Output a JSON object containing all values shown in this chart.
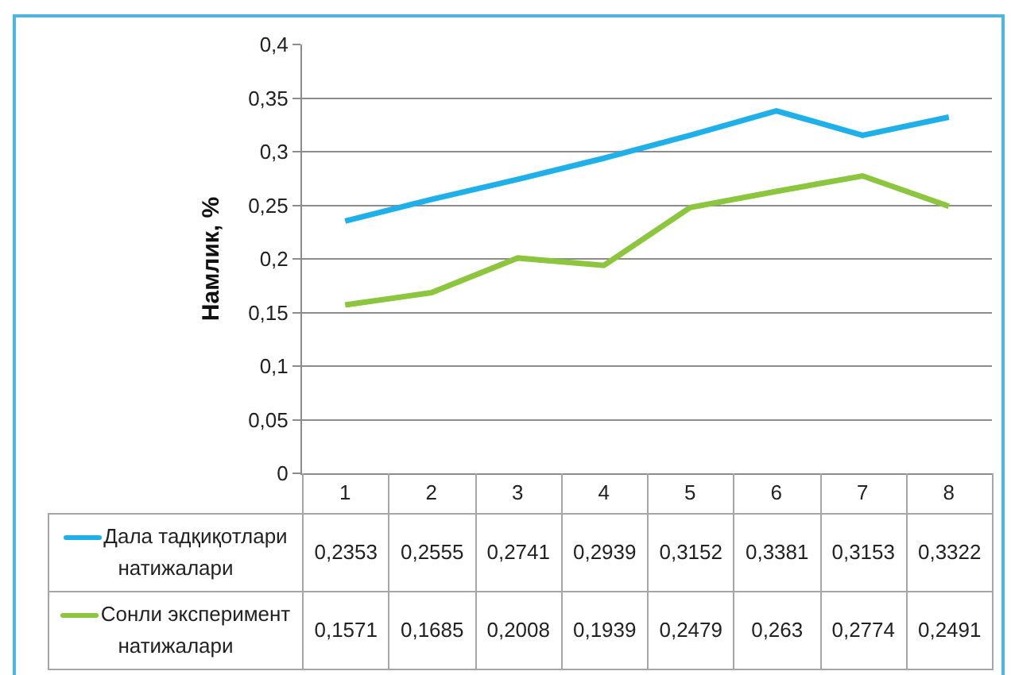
{
  "chart_data": {
    "type": "line",
    "ylabel": "Намлик, %",
    "categories": [
      "1",
      "2",
      "3",
      "4",
      "5",
      "6",
      "7",
      "8"
    ],
    "series": [
      {
        "name": "Дала тадқиқотлари натижалари",
        "color": "#1fb0ea",
        "values": [
          0.2353,
          0.2555,
          0.2741,
          0.2939,
          0.3152,
          0.3381,
          0.3153,
          0.3322
        ],
        "value_labels": [
          "0,2353",
          "0,2555",
          "0,2741",
          "0,2939",
          "0,3152",
          "0,3381",
          "0,3153",
          "0,3322"
        ]
      },
      {
        "name": "Сонли эксперимент натижалари",
        "color": "#8cc63f",
        "values": [
          0.1571,
          0.1685,
          0.2008,
          0.1939,
          0.2479,
          0.263,
          0.2774,
          0.2491
        ],
        "value_labels": [
          "0,1571",
          "0,1685",
          "0,2008",
          "0,1939",
          "0,2479",
          "0,263",
          "0,2774",
          "0,2491"
        ]
      }
    ],
    "ylim": [
      0,
      0.4
    ],
    "yticks": [
      0,
      {
        "value": 0.05,
        "label": "0,05"
      },
      {
        "value": 0.1,
        "label": "0,1"
      },
      {
        "value": 0.15,
        "label": "0,15"
      },
      {
        "value": 0.2,
        "label": "0,2"
      },
      {
        "value": 0.25,
        "label": "0,25"
      },
      {
        "value": 0.3,
        "label": "0,3"
      },
      {
        "value": 0.35,
        "label": "0,35"
      },
      {
        "value": 0.4,
        "label": "0,4"
      }
    ],
    "grid": "y",
    "legend": "bottom",
    "line_style": "solid"
  }
}
